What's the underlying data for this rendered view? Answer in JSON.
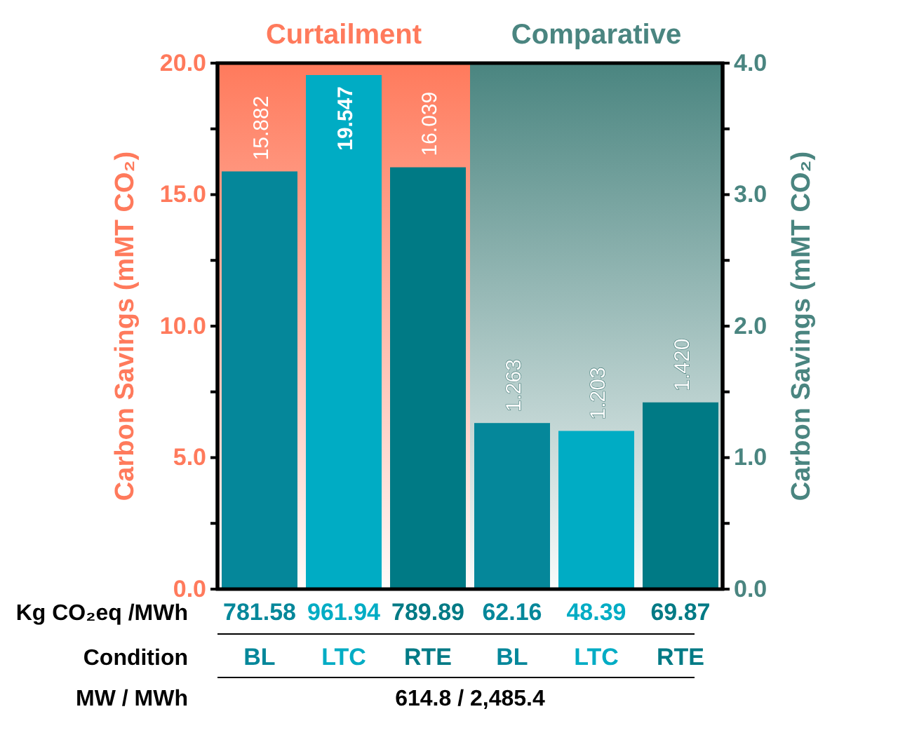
{
  "chart_data": {
    "type": "bar",
    "categories": [
      "BL",
      "LTC",
      "RTE",
      "BL",
      "LTC",
      "RTE"
    ],
    "series": [
      {
        "colors": [
          "#05879a",
          "#00acc4",
          "#007a85",
          "#05879a",
          "#00acc4",
          "#007a85"
        ],
        "values": [
          15.882,
          19.547,
          16.039,
          null,
          null,
          null
        ],
        "value_labels": [
          "15.882",
          "19.547",
          "16.039",
          null,
          null,
          null
        ]
      },
      {
        "axis": "y2",
        "colors": [
          "#05879a",
          "#00acc4",
          "#007a85",
          "#05879a",
          "#00acc4",
          "#007a85"
        ],
        "values": [
          null,
          null,
          null,
          1.263,
          1.203,
          1.42
        ],
        "value_labels": [
          null,
          null,
          null,
          "1.263",
          "1.203",
          "1.420"
        ]
      }
    ],
    "ylabel": "Carbon Savings (mMT CO₂)",
    "y2label": "Carbon Savings (mMT CO₂)",
    "ylim": [
      0,
      20
    ],
    "yticks": [
      {
        "value": 0,
        "label": "0.0"
      },
      {
        "value": 2.5,
        "label": null
      },
      {
        "value": 5,
        "label": "5.0"
      },
      {
        "value": 7.5,
        "label": null
      },
      {
        "value": 10,
        "label": "10.0"
      },
      {
        "value": 12.5,
        "label": null
      },
      {
        "value": 15,
        "label": "15.0"
      },
      {
        "value": 17.5,
        "label": null
      },
      {
        "value": 20,
        "label": "20.0"
      }
    ],
    "y2lim": [
      0,
      4
    ],
    "y2ticks": [
      {
        "value": 0,
        "label": "0.0"
      },
      {
        "value": 0.5,
        "label": null
      },
      {
        "value": 1,
        "label": "1.0"
      },
      {
        "value": 1.5,
        "label": null
      },
      {
        "value": 2,
        "label": "2.0"
      },
      {
        "value": 2.5,
        "label": null
      },
      {
        "value": 3,
        "label": "3.0"
      },
      {
        "value": 3.5,
        "label": null
      },
      {
        "value": 4,
        "label": "4.0"
      }
    ],
    "annotations": [
      "Kg CO₂eq /MWh",
      "781.58",
      "961.94",
      "789.89",
      "62.16",
      "48.39",
      "69.87",
      "Condition",
      "MW / MWh",
      "614.8 / 2,485.4",
      "Curtailment",
      "Comparative"
    ]
  }
}
